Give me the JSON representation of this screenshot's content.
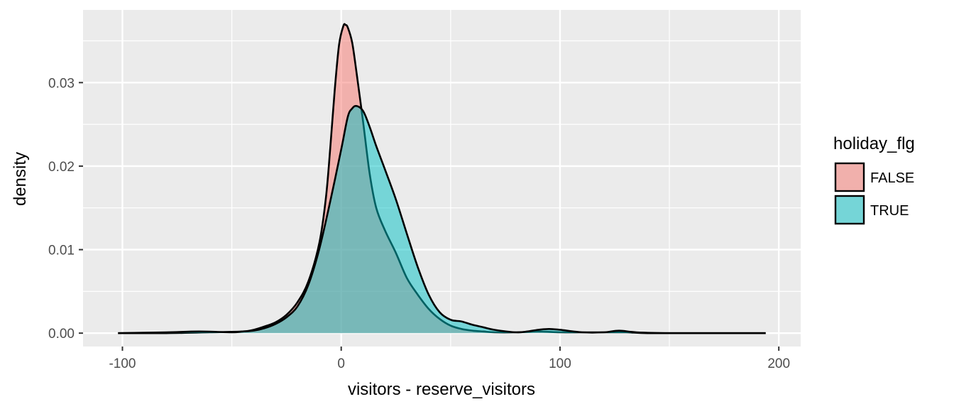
{
  "chart_data": {
    "type": "area",
    "subtype": "density",
    "title": "",
    "xlabel": "visitors - reserve_visitors",
    "ylabel": "density",
    "xlim": [
      -118,
      210
    ],
    "ylim": [
      -0.0016,
      0.0387
    ],
    "x_ticks": [
      -100,
      0,
      100,
      200
    ],
    "x_tick_labels": [
      "-100",
      "0",
      "100",
      "200"
    ],
    "y_ticks": [
      0.0,
      0.01,
      0.02,
      0.03
    ],
    "y_tick_labels": [
      "0.00",
      "0.01",
      "0.02",
      "0.03"
    ],
    "grid": true,
    "legend": {
      "title": "holiday_flg",
      "placement": "right"
    },
    "series": [
      {
        "name": "FALSE",
        "color": "#F8766D",
        "x": [
          -102,
          -80,
          -60,
          -45,
          -40,
          -35,
          -30,
          -25,
          -20,
          -15,
          -10,
          -7,
          -5,
          -3,
          -1,
          1,
          2,
          3,
          5,
          7,
          10,
          13,
          16,
          20,
          25,
          30,
          35,
          40,
          45,
          50,
          55,
          60,
          65,
          70,
          80,
          90,
          100,
          110,
          120,
          130,
          140,
          160,
          180,
          194
        ],
        "y": [
          0.0,
          0.0,
          0.0001,
          0.0002,
          0.0004,
          0.0008,
          0.0013,
          0.0022,
          0.0037,
          0.0062,
          0.0108,
          0.0162,
          0.0222,
          0.029,
          0.0345,
          0.0368,
          0.0369,
          0.0366,
          0.0348,
          0.0312,
          0.0253,
          0.0191,
          0.015,
          0.0123,
          0.0096,
          0.0066,
          0.0046,
          0.0029,
          0.0017,
          0.0009,
          0.0005,
          0.0003,
          0.0002,
          0.0001,
          0.0001,
          0.0002,
          0.0001,
          0.0001,
          0.0001,
          0.0001,
          0.0,
          0.0,
          0.0,
          0.0
        ]
      },
      {
        "name": "TRUE",
        "color": "#00BFC4",
        "x": [
          -102,
          -80,
          -65,
          -50,
          -45,
          -40,
          -35,
          -30,
          -25,
          -20,
          -15,
          -10,
          -5,
          0,
          3,
          5,
          7,
          10,
          13,
          16,
          20,
          25,
          30,
          35,
          40,
          45,
          50,
          55,
          60,
          65,
          70,
          80,
          85,
          90,
          95,
          100,
          110,
          120,
          127,
          135,
          150,
          180,
          194
        ],
        "y": [
          0.0,
          0.0001,
          0.0002,
          0.0001,
          0.0002,
          0.0003,
          0.0006,
          0.0011,
          0.0019,
          0.0032,
          0.0058,
          0.0101,
          0.0158,
          0.022,
          0.0259,
          0.0269,
          0.0272,
          0.0266,
          0.0247,
          0.0224,
          0.0196,
          0.016,
          0.0119,
          0.0079,
          0.0046,
          0.0025,
          0.0016,
          0.0014,
          0.001,
          0.0007,
          0.0004,
          0.0001,
          0.0002,
          0.0004,
          0.0005,
          0.0004,
          0.0001,
          0.0001,
          0.0003,
          0.0001,
          0.0,
          0.0,
          0.0
        ]
      }
    ]
  }
}
